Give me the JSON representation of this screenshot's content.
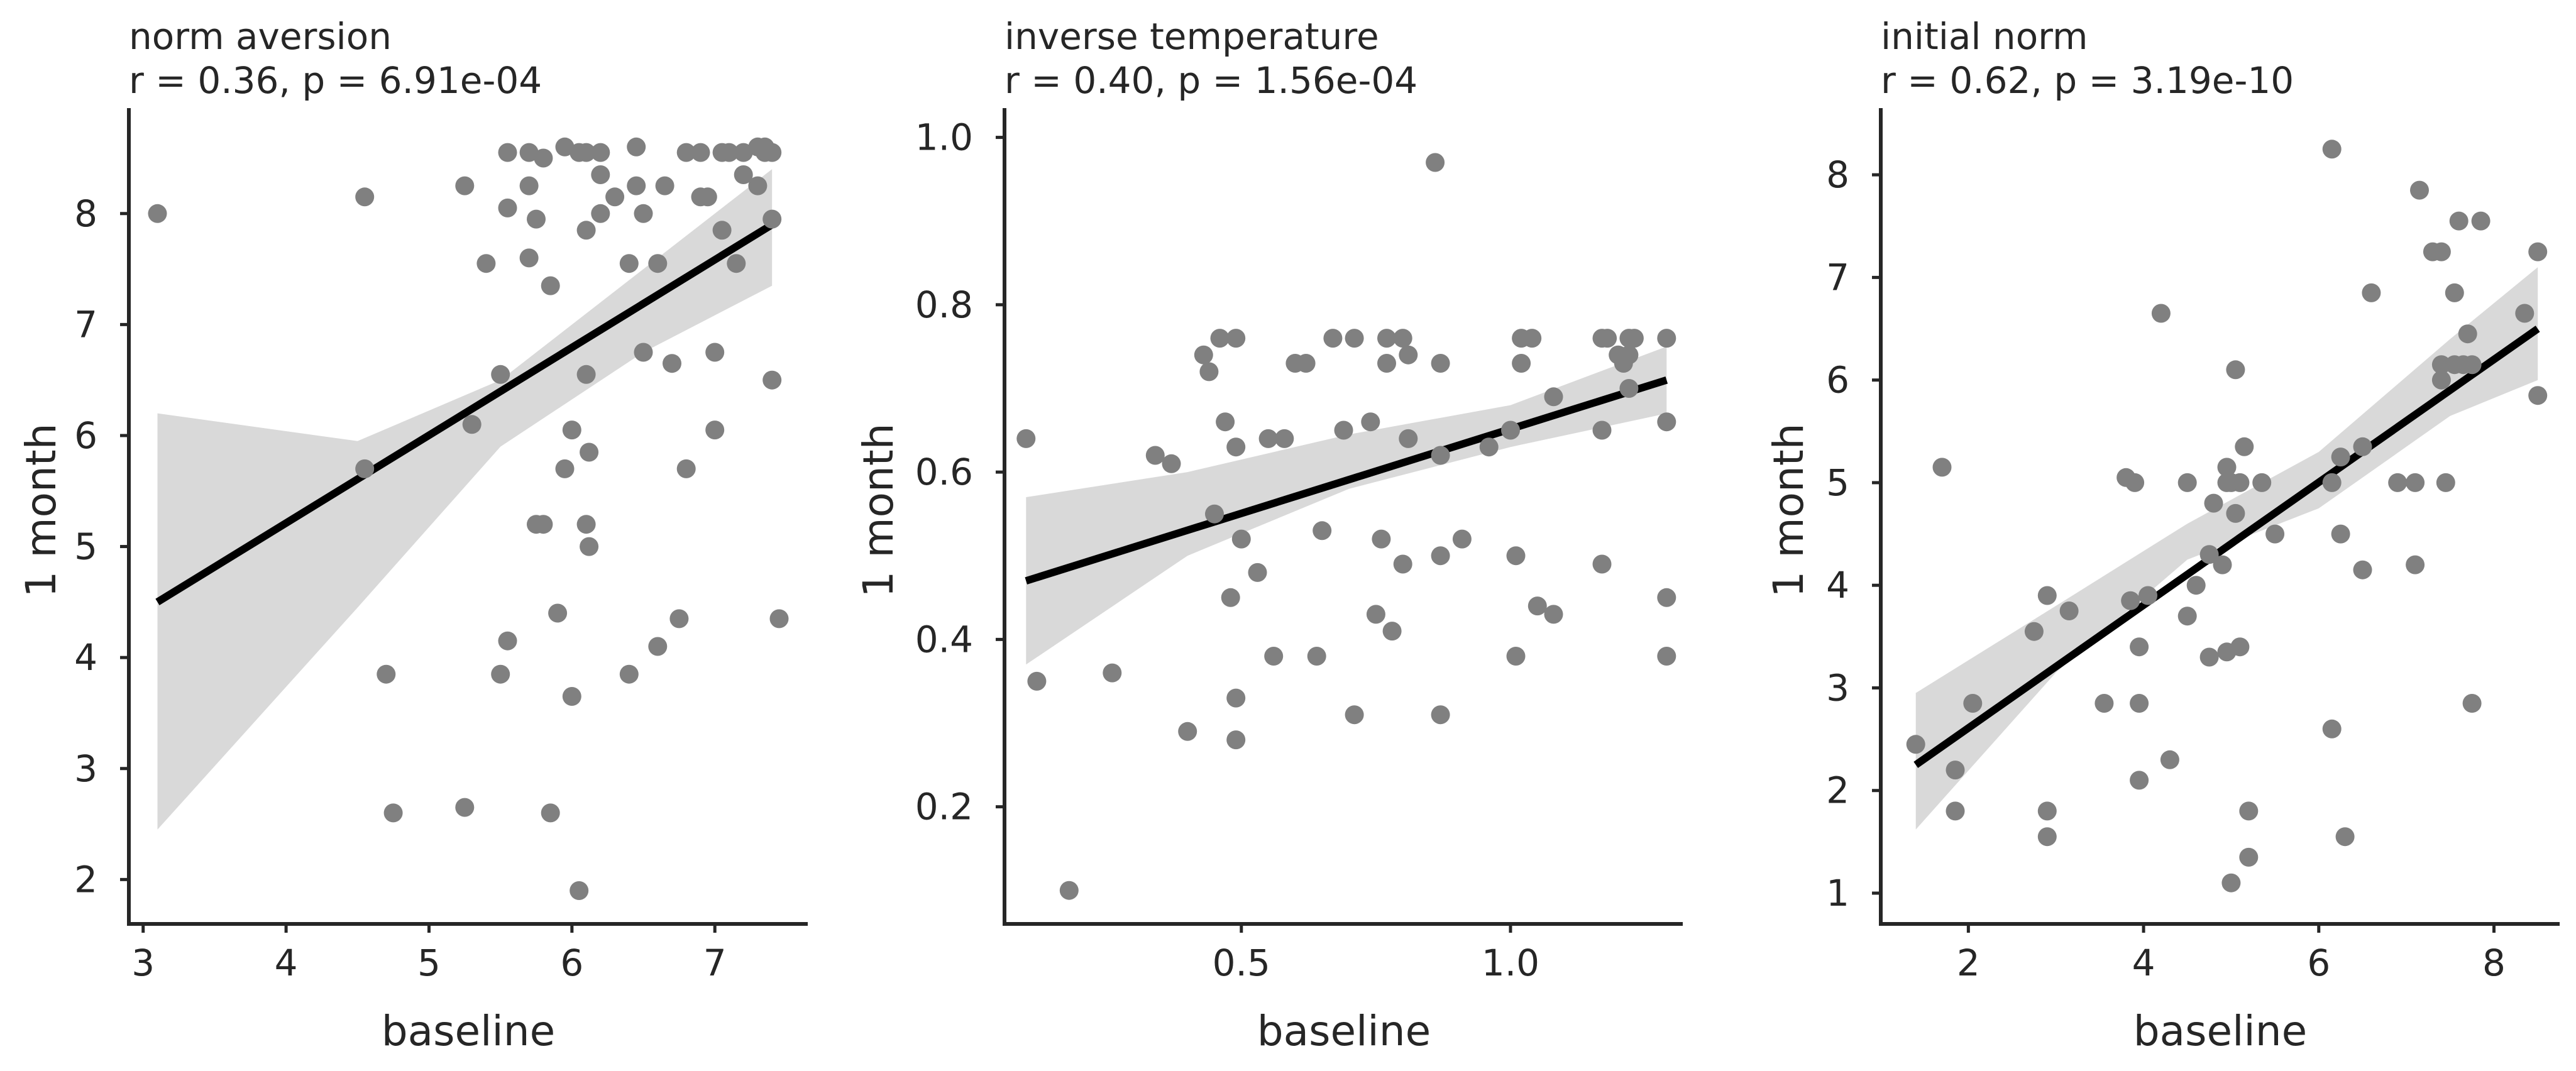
{
  "colors": {
    "points": "#808080",
    "ci_band": "#d9d9d9",
    "regression_line": "#000000",
    "axes": "#262626"
  },
  "chart_data": [
    {
      "type": "scatter",
      "title": "norm aversion",
      "subtitle": "r = 0.36, p = 6.91e-04",
      "xlabel": "baseline",
      "ylabel": "1 month",
      "xlim": [
        2.9,
        7.65
      ],
      "ylim": [
        1.6,
        8.95
      ],
      "xticks": [
        3,
        4,
        5,
        6,
        7
      ],
      "xtick_labels": [
        "3",
        "4",
        "5",
        "6",
        "7"
      ],
      "yticks": [
        2,
        3,
        4,
        5,
        6,
        7,
        8
      ],
      "ytick_labels": [
        "2",
        "3",
        "4",
        "5",
        "6",
        "7",
        "8"
      ],
      "regression": {
        "x": [
          3.1,
          7.4
        ],
        "y": [
          4.5,
          7.9
        ]
      },
      "ci_band": {
        "x": [
          3.1,
          4.5,
          5.5,
          6.5,
          7.4
        ],
        "lower": [
          2.45,
          4.45,
          5.9,
          6.75,
          7.35
        ],
        "upper": [
          6.2,
          5.95,
          6.5,
          7.5,
          8.4
        ]
      },
      "points": [
        [
          3.1,
          8.0
        ],
        [
          4.55,
          8.15
        ],
        [
          4.55,
          5.7
        ],
        [
          4.7,
          3.85
        ],
        [
          4.75,
          2.6
        ],
        [
          5.25,
          8.25
        ],
        [
          5.25,
          2.65
        ],
        [
          5.3,
          6.1
        ],
        [
          5.4,
          7.55
        ],
        [
          5.5,
          6.55
        ],
        [
          5.5,
          3.85
        ],
        [
          5.55,
          8.55
        ],
        [
          5.55,
          8.05
        ],
        [
          5.55,
          4.15
        ],
        [
          5.7,
          8.55
        ],
        [
          5.7,
          8.25
        ],
        [
          5.7,
          7.6
        ],
        [
          5.75,
          7.95
        ],
        [
          5.75,
          5.2
        ],
        [
          5.8,
          8.5
        ],
        [
          5.8,
          5.2
        ],
        [
          5.85,
          7.35
        ],
        [
          5.85,
          2.6
        ],
        [
          5.9,
          4.4
        ],
        [
          5.95,
          8.6
        ],
        [
          5.95,
          5.7
        ],
        [
          6.0,
          6.05
        ],
        [
          6.0,
          3.65
        ],
        [
          6.05,
          8.55
        ],
        [
          6.05,
          1.9
        ],
        [
          6.1,
          8.55
        ],
        [
          6.1,
          7.85
        ],
        [
          6.1,
          6.55
        ],
        [
          6.1,
          5.2
        ],
        [
          6.12,
          5.85
        ],
        [
          6.12,
          5.0
        ],
        [
          6.2,
          8.55
        ],
        [
          6.2,
          8.35
        ],
        [
          6.2,
          8.0
        ],
        [
          6.3,
          8.15
        ],
        [
          6.4,
          7.55
        ],
        [
          6.4,
          3.85
        ],
        [
          6.45,
          8.6
        ],
        [
          6.45,
          8.25
        ],
        [
          6.5,
          8.0
        ],
        [
          6.5,
          6.75
        ],
        [
          6.6,
          7.55
        ],
        [
          6.6,
          4.1
        ],
        [
          6.65,
          8.25
        ],
        [
          6.7,
          6.65
        ],
        [
          6.75,
          4.35
        ],
        [
          6.8,
          8.55
        ],
        [
          6.8,
          5.7
        ],
        [
          6.9,
          8.55
        ],
        [
          6.9,
          8.15
        ],
        [
          6.95,
          8.15
        ],
        [
          7.0,
          6.75
        ],
        [
          7.0,
          6.05
        ],
        [
          7.05,
          8.55
        ],
        [
          7.05,
          7.85
        ],
        [
          7.1,
          8.55
        ],
        [
          7.15,
          7.55
        ],
        [
          7.2,
          8.55
        ],
        [
          7.2,
          8.35
        ],
        [
          7.3,
          8.6
        ],
        [
          7.3,
          8.25
        ],
        [
          7.35,
          8.6
        ],
        [
          7.35,
          8.55
        ],
        [
          7.4,
          8.55
        ],
        [
          7.4,
          7.95
        ],
        [
          7.4,
          6.5
        ],
        [
          7.45,
          4.35
        ]
      ]
    },
    {
      "type": "scatter",
      "title": "inverse temperature",
      "subtitle": "r = 0.40, p = 1.56e-04",
      "xlabel": "baseline",
      "ylabel": "1 month",
      "xlim": [
        0.06,
        1.32
      ],
      "ylim": [
        0.06,
        1.035
      ],
      "xticks": [
        0.5,
        1.0
      ],
      "xtick_labels": [
        "0.5",
        "1.0"
      ],
      "yticks": [
        0.2,
        0.4,
        0.6,
        0.8,
        1.0
      ],
      "ytick_labels": [
        "0.2",
        "0.4",
        "0.6",
        "0.8",
        "1.0"
      ],
      "regression": {
        "x": [
          0.1,
          1.29
        ],
        "y": [
          0.47,
          0.71
        ]
      },
      "ci_band": {
        "x": [
          0.1,
          0.4,
          0.7,
          1.0,
          1.29
        ],
        "lower": [
          0.37,
          0.5,
          0.58,
          0.63,
          0.67
        ],
        "upper": [
          0.57,
          0.6,
          0.645,
          0.68,
          0.75
        ]
      },
      "points": [
        [
          0.1,
          0.64
        ],
        [
          0.12,
          0.35
        ],
        [
          0.18,
          0.1
        ],
        [
          0.26,
          0.36
        ],
        [
          0.34,
          0.62
        ],
        [
          0.37,
          0.61
        ],
        [
          0.4,
          0.29
        ],
        [
          0.43,
          0.74
        ],
        [
          0.44,
          0.72
        ],
        [
          0.45,
          0.55
        ],
        [
          0.46,
          0.76
        ],
        [
          0.47,
          0.66
        ],
        [
          0.48,
          0.45
        ],
        [
          0.49,
          0.76
        ],
        [
          0.49,
          0.63
        ],
        [
          0.49,
          0.33
        ],
        [
          0.49,
          0.28
        ],
        [
          0.5,
          0.52
        ],
        [
          0.53,
          0.48
        ],
        [
          0.55,
          0.64
        ],
        [
          0.56,
          0.38
        ],
        [
          0.58,
          0.64
        ],
        [
          0.6,
          0.73
        ],
        [
          0.62,
          0.73
        ],
        [
          0.64,
          0.38
        ],
        [
          0.65,
          0.53
        ],
        [
          0.67,
          0.76
        ],
        [
          0.69,
          0.65
        ],
        [
          0.71,
          0.76
        ],
        [
          0.71,
          0.31
        ],
        [
          0.74,
          0.66
        ],
        [
          0.75,
          0.43
        ],
        [
          0.76,
          0.52
        ],
        [
          0.77,
          0.76
        ],
        [
          0.77,
          0.73
        ],
        [
          0.78,
          0.41
        ],
        [
          0.8,
          0.76
        ],
        [
          0.8,
          0.49
        ],
        [
          0.81,
          0.74
        ],
        [
          0.81,
          0.64
        ],
        [
          0.86,
          0.97
        ],
        [
          0.87,
          0.73
        ],
        [
          0.87,
          0.62
        ],
        [
          0.87,
          0.5
        ],
        [
          0.87,
          0.31
        ],
        [
          0.91,
          0.52
        ],
        [
          0.96,
          0.63
        ],
        [
          1.0,
          0.65
        ],
        [
          1.01,
          0.5
        ],
        [
          1.01,
          0.38
        ],
        [
          1.02,
          0.76
        ],
        [
          1.02,
          0.73
        ],
        [
          1.04,
          0.76
        ],
        [
          1.05,
          0.44
        ],
        [
          1.08,
          0.69
        ],
        [
          1.08,
          0.43
        ],
        [
          1.17,
          0.76
        ],
        [
          1.17,
          0.65
        ],
        [
          1.17,
          0.49
        ],
        [
          1.18,
          0.76
        ],
        [
          1.2,
          0.74
        ],
        [
          1.21,
          0.73
        ],
        [
          1.22,
          0.76
        ],
        [
          1.22,
          0.74
        ],
        [
          1.22,
          0.7
        ],
        [
          1.23,
          0.76
        ],
        [
          1.29,
          0.76
        ],
        [
          1.29,
          0.66
        ],
        [
          1.29,
          0.45
        ],
        [
          1.29,
          0.38
        ]
      ]
    },
    {
      "type": "scatter",
      "title": "initial norm",
      "subtitle": "r = 0.62, p = 3.19e-10",
      "xlabel": "baseline",
      "ylabel": "1 month",
      "xlim": [
        1.0,
        8.75
      ],
      "ylim": [
        0.7,
        8.65
      ],
      "xticks": [
        2,
        4,
        6,
        8
      ],
      "xtick_labels": [
        "2",
        "4",
        "6",
        "8"
      ],
      "yticks": [
        1,
        2,
        3,
        4,
        5,
        6,
        7,
        8
      ],
      "ytick_labels": [
        "1",
        "2",
        "3",
        "4",
        "5",
        "6",
        "7",
        "8"
      ],
      "regression": {
        "x": [
          1.4,
          8.5
        ],
        "y": [
          2.25,
          6.5
        ]
      },
      "ci_band": {
        "x": [
          1.4,
          3.0,
          4.5,
          6.0,
          7.5,
          8.5
        ],
        "lower": [
          1.62,
          3.15,
          4.25,
          4.75,
          5.65,
          6.0
        ],
        "upper": [
          2.95,
          3.8,
          4.6,
          5.3,
          6.4,
          7.1
        ]
      },
      "points": [
        [
          1.4,
          2.45
        ],
        [
          1.7,
          5.15
        ],
        [
          1.85,
          2.2
        ],
        [
          1.85,
          1.8
        ],
        [
          2.05,
          2.85
        ],
        [
          2.75,
          3.55
        ],
        [
          2.9,
          3.9
        ],
        [
          2.9,
          1.8
        ],
        [
          2.9,
          1.55
        ],
        [
          3.15,
          3.75
        ],
        [
          3.55,
          2.85
        ],
        [
          3.8,
          5.05
        ],
        [
          3.85,
          3.85
        ],
        [
          3.9,
          5.0
        ],
        [
          3.95,
          3.4
        ],
        [
          3.95,
          2.85
        ],
        [
          3.95,
          2.1
        ],
        [
          4.05,
          3.9
        ],
        [
          4.2,
          6.65
        ],
        [
          4.3,
          2.3
        ],
        [
          4.5,
          5.0
        ],
        [
          4.5,
          3.7
        ],
        [
          4.6,
          4.0
        ],
        [
          4.75,
          4.3
        ],
        [
          4.75,
          3.3
        ],
        [
          4.8,
          4.8
        ],
        [
          4.9,
          4.2
        ],
        [
          4.95,
          5.15
        ],
        [
          4.95,
          5.0
        ],
        [
          4.95,
          3.35
        ],
        [
          5.0,
          5.0
        ],
        [
          5.0,
          1.1
        ],
        [
          5.05,
          6.1
        ],
        [
          5.05,
          4.7
        ],
        [
          5.1,
          5.0
        ],
        [
          5.1,
          3.4
        ],
        [
          5.15,
          5.35
        ],
        [
          5.2,
          1.8
        ],
        [
          5.2,
          1.35
        ],
        [
          5.35,
          5.0
        ],
        [
          5.5,
          4.5
        ],
        [
          6.15,
          8.25
        ],
        [
          6.15,
          5.0
        ],
        [
          6.15,
          2.6
        ],
        [
          6.25,
          5.25
        ],
        [
          6.25,
          4.5
        ],
        [
          6.3,
          1.55
        ],
        [
          6.5,
          5.35
        ],
        [
          6.5,
          4.15
        ],
        [
          6.6,
          6.85
        ],
        [
          6.9,
          5.0
        ],
        [
          7.1,
          4.2
        ],
        [
          7.1,
          5.0
        ],
        [
          7.15,
          7.85
        ],
        [
          7.3,
          7.25
        ],
        [
          7.4,
          7.25
        ],
        [
          7.4,
          6.15
        ],
        [
          7.4,
          6.0
        ],
        [
          7.45,
          5.0
        ],
        [
          7.55,
          6.85
        ],
        [
          7.55,
          6.15
        ],
        [
          7.6,
          7.55
        ],
        [
          7.65,
          6.15
        ],
        [
          7.7,
          6.45
        ],
        [
          7.75,
          6.15
        ],
        [
          7.75,
          2.85
        ],
        [
          7.85,
          7.55
        ],
        [
          8.35,
          6.65
        ],
        [
          8.5,
          7.25
        ],
        [
          8.5,
          5.85
        ]
      ]
    }
  ]
}
